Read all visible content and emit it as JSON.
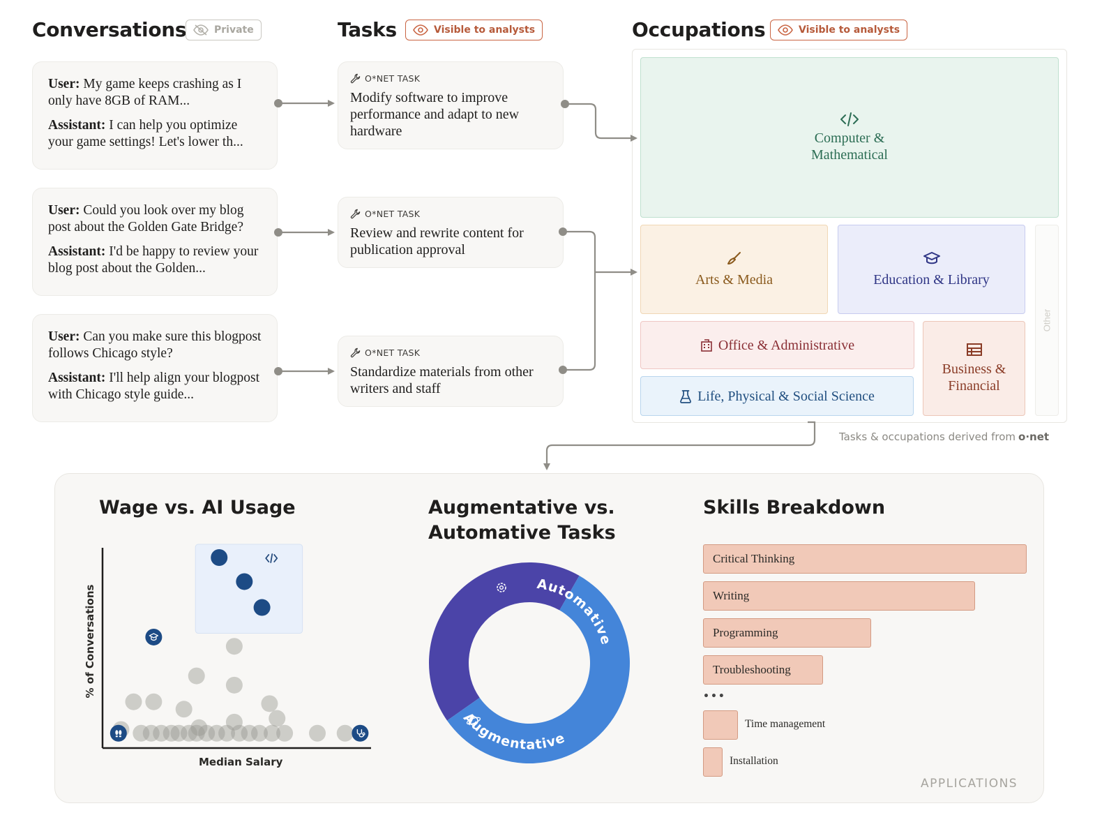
{
  "headers": {
    "conversations": "Conversations",
    "private_label": "Private",
    "tasks": "Tasks",
    "tasks_visibility": "Visible to analysts",
    "occupations": "Occupations",
    "occupations_visibility": "Visible to analysts"
  },
  "conversations": [
    {
      "user_label": "User:",
      "user_text": " My game keeps crashing as I only have 8GB of RAM...",
      "assistant_label": "Assistant:",
      "assistant_text": " I can help you optimize your game settings! Let's lower th..."
    },
    {
      "user_label": "User:",
      "user_text": "  Could you look over my blog post about the Golden Gate Bridge?",
      "assistant_label": "Assistant:",
      "assistant_text": " I'd be happy to review your blog post about the Golden..."
    },
    {
      "user_label": "User:",
      "user_text": " Can you make sure this blogpost follows Chicago style?",
      "assistant_label": "Assistant:",
      "assistant_text": " I'll help align your blogpost with Chicago style guide..."
    }
  ],
  "tasks": [
    {
      "tag": "O*NET TASK",
      "text": "Modify software to improve performance and adapt to new hardware"
    },
    {
      "tag": "O*NET TASK",
      "text": "Review and rewrite content for publication approval"
    },
    {
      "tag": "O*NET TASK",
      "text": "Standardize materials from other writers and staff"
    }
  ],
  "occupations": {
    "computer": {
      "line1": "Computer &",
      "line2": "Mathematical",
      "icon": "code-icon"
    },
    "arts": {
      "label": "Arts & Media",
      "icon": "paintbrush-icon"
    },
    "education": {
      "label": "Education & Library",
      "icon": "graduation-cap-icon"
    },
    "other": {
      "label": "Other"
    },
    "office": {
      "label": "Office & Administrative",
      "icon": "building-icon"
    },
    "life": {
      "label": "Life, Physical & Social Science",
      "icon": "flask-icon"
    },
    "business": {
      "line1": "Business &",
      "line2": "Financial",
      "icon": "ledger-icon"
    }
  },
  "source_note": {
    "text": "Tasks & occupations derived from",
    "brand": "o·net"
  },
  "applications": {
    "label": "APPLICATIONS",
    "wage_title": "Wage vs. AI Usage",
    "wage_ylabel": "% of Conversations",
    "wage_xlabel": "Median Salary",
    "donut_title_line1": "Augmentative vs.",
    "donut_title_line2": "Automative Tasks",
    "skills_title": "Skills Breakdown"
  },
  "chart_data": [
    {
      "type": "scatter",
      "title": "Wage vs. AI Usage",
      "xlabel": "Median Salary",
      "ylabel": "% of Conversations",
      "x_range": [
        0,
        100
      ],
      "y_range": [
        0,
        100
      ],
      "grid": false,
      "highlighted_group": {
        "icon": "code-icon",
        "points": [
          [
            43,
            100
          ],
          [
            53,
            87
          ],
          [
            60,
            73
          ]
        ]
      },
      "highlighted_points": [
        {
          "x": 17,
          "y": 57,
          "icon": "graduation-cap-icon"
        },
        {
          "x": 3,
          "y": 5,
          "icon": "footprints-icon"
        },
        {
          "x": 99,
          "y": 5,
          "icon": "stethoscope-icon"
        }
      ],
      "points": [
        [
          49,
          52
        ],
        [
          34,
          36
        ],
        [
          49,
          31
        ],
        [
          9,
          22
        ],
        [
          17,
          22
        ],
        [
          29,
          18
        ],
        [
          63,
          21
        ],
        [
          66,
          13
        ],
        [
          49,
          11
        ],
        [
          4,
          7
        ],
        [
          12,
          5
        ],
        [
          16,
          5
        ],
        [
          20,
          5
        ],
        [
          24,
          5
        ],
        [
          27,
          5
        ],
        [
          31,
          5
        ],
        [
          34,
          5
        ],
        [
          38,
          5
        ],
        [
          42,
          5
        ],
        [
          46,
          5
        ],
        [
          51,
          5
        ],
        [
          55,
          5
        ],
        [
          59,
          5
        ],
        [
          64,
          5
        ],
        [
          69,
          5
        ],
        [
          82,
          5
        ],
        [
          93,
          5
        ],
        [
          35,
          8
        ]
      ]
    },
    {
      "type": "pie",
      "title": "Augmentative vs. Automative Tasks",
      "categories": [
        "Automative",
        "Augmentative"
      ],
      "values": [
        43,
        57
      ],
      "colors": [
        "#4b44a8",
        "#4485d9"
      ]
    },
    {
      "type": "bar",
      "title": "Skills Breakdown",
      "orientation": "horizontal",
      "categories": [
        "Critical Thinking",
        "Writing",
        "Programming",
        "Troubleshooting",
        "Time management",
        "Installation"
      ],
      "values": [
        100,
        84,
        52,
        37,
        10,
        5
      ],
      "color": "#f1c9b8"
    }
  ]
}
